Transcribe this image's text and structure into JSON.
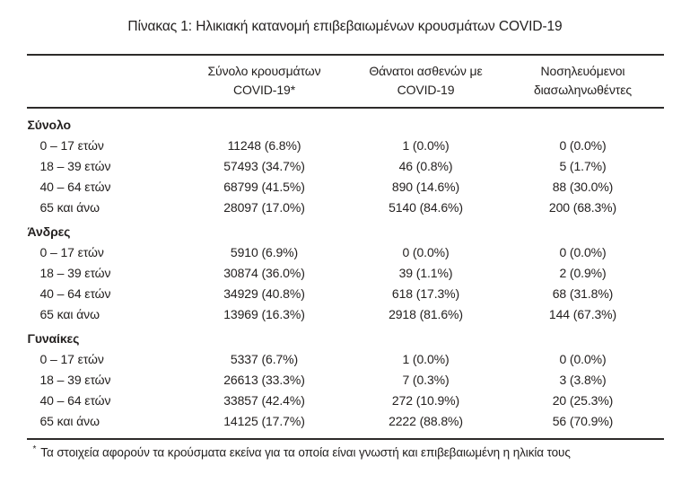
{
  "title": "Πίνακας 1: Ηλικιακή κατανομή επιβεβαιωμένων κρουσμάτων COVID-19",
  "table": {
    "columns": [
      {
        "line1": "Σύνολο κρουσμάτων",
        "line2": "COVID-19*"
      },
      {
        "line1": "Θάνατοι ασθενών με",
        "line2": "COVID-19"
      },
      {
        "line1": "Νοσηλευόμενοι",
        "line2": "διασωληνωθέντες"
      }
    ],
    "sections": [
      {
        "header": "Σύνολο",
        "rows": [
          {
            "label": "0 – 17 ετών",
            "cases": "11248 (6.8%)",
            "deaths": "1 (0.0%)",
            "intubated": "0 (0.0%)"
          },
          {
            "label": "18 – 39 ετών",
            "cases": "57493 (34.7%)",
            "deaths": "46 (0.8%)",
            "intubated": "5 (1.7%)"
          },
          {
            "label": "40 – 64 ετών",
            "cases": "68799 (41.5%)",
            "deaths": "890 (14.6%)",
            "intubated": "88 (30.0%)"
          },
          {
            "label": "65 και άνω",
            "cases": "28097 (17.0%)",
            "deaths": "5140 (84.6%)",
            "intubated": "200 (68.3%)"
          }
        ]
      },
      {
        "header": "Άνδρες",
        "rows": [
          {
            "label": "0 – 17 ετών",
            "cases": "5910 (6.9%)",
            "deaths": "0 (0.0%)",
            "intubated": "0 (0.0%)"
          },
          {
            "label": "18 – 39 ετών",
            "cases": "30874 (36.0%)",
            "deaths": "39 (1.1%)",
            "intubated": "2 (0.9%)"
          },
          {
            "label": "40 – 64 ετών",
            "cases": "34929 (40.8%)",
            "deaths": "618 (17.3%)",
            "intubated": "68 (31.8%)"
          },
          {
            "label": "65 και άνω",
            "cases": "13969 (16.3%)",
            "deaths": "2918 (81.6%)",
            "intubated": "144 (67.3%)"
          }
        ]
      },
      {
        "header": "Γυναίκες",
        "rows": [
          {
            "label": "0 – 17 ετών",
            "cases": "5337 (6.7%)",
            "deaths": "1 (0.0%)",
            "intubated": "0 (0.0%)"
          },
          {
            "label": "18 – 39 ετών",
            "cases": "26613 (33.3%)",
            "deaths": "7 (0.3%)",
            "intubated": "3 (3.8%)"
          },
          {
            "label": "40 – 64 ετών",
            "cases": "33857 (42.4%)",
            "deaths": "272 (10.9%)",
            "intubated": "20 (25.3%)"
          },
          {
            "label": "65 και άνω",
            "cases": "14125 (17.7%)",
            "deaths": "2222 (88.8%)",
            "intubated": "56 (70.9%)"
          }
        ]
      }
    ]
  },
  "footnote": {
    "marker": "*",
    "text": "Τα στοιχεία αφορούν τα κρούσματα εκείνα για τα οποία είναι γνωστή και επιβεβαιωμένη η ηλικία τους"
  },
  "colors": {
    "text": "#242120",
    "rule": "#2d2b2a",
    "background": "#ffffff"
  }
}
